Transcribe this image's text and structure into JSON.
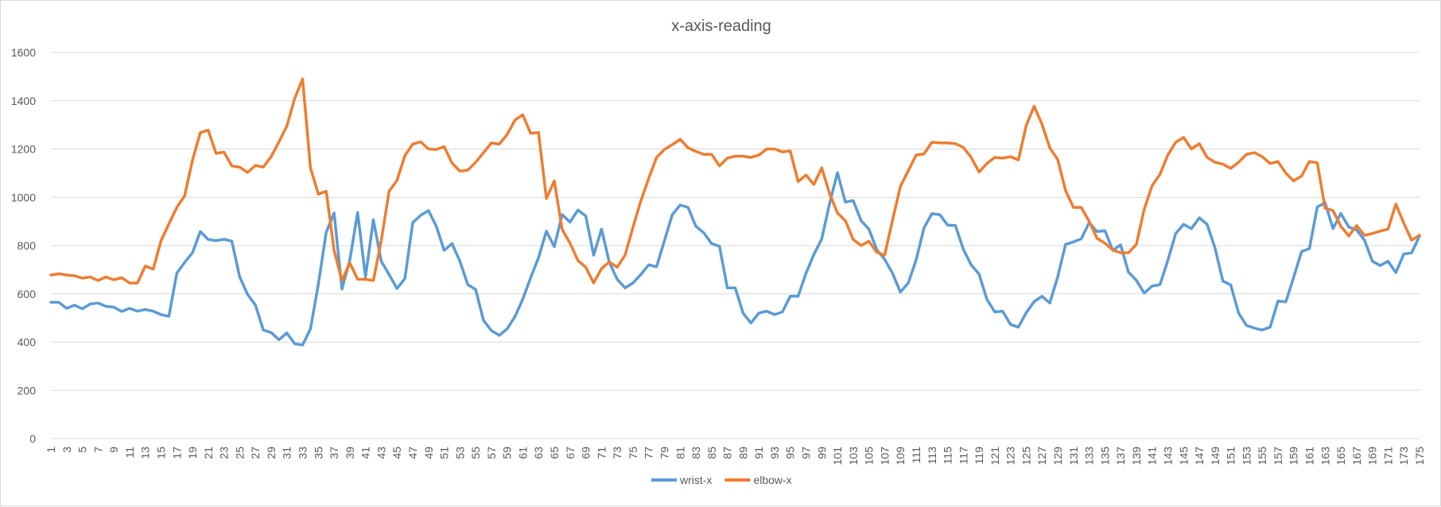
{
  "chart_data": {
    "type": "line",
    "title": "x-axis-reading",
    "xlabel": "",
    "ylabel": "",
    "ylim": [
      0,
      1600
    ],
    "yticks": [
      0,
      200,
      400,
      600,
      800,
      1000,
      1200,
      1400,
      1600
    ],
    "grid": true,
    "legend_position": "bottom",
    "x_start": 1,
    "x_end": 175,
    "x_tick_labels": [
      "1",
      "3",
      "5",
      "7",
      "9",
      "11",
      "13",
      "15",
      "17",
      "19",
      "21",
      "23",
      "25",
      "27",
      "29",
      "31",
      "33",
      "35",
      "37",
      "39",
      "41",
      "43",
      "45",
      "47",
      "49",
      "51",
      "53",
      "55",
      "57",
      "59",
      "61",
      "63",
      "65",
      "67",
      "69",
      "71",
      "73",
      "75",
      "77",
      "79",
      "81",
      "83",
      "85",
      "87",
      "89",
      "91",
      "93",
      "95",
      "97",
      "99",
      "101",
      "103",
      "105",
      "107",
      "109",
      "111",
      "113",
      "115",
      "117",
      "119",
      "121",
      "123",
      "125",
      "127",
      "129",
      "131",
      "133",
      "135",
      "137",
      "139",
      "141",
      "143",
      "145",
      "147",
      "149",
      "151",
      "153",
      "155",
      "157",
      "159",
      "161",
      "163",
      "165",
      "167",
      "169",
      "171",
      "173",
      "175"
    ],
    "series": [
      {
        "name": "wrist-x",
        "color": "#5b9bd5",
        "values": [
          565,
          565,
          540,
          553,
          538,
          558,
          562,
          548,
          545,
          527,
          540,
          528,
          535,
          528,
          514,
          507,
          685,
          730,
          770,
          858,
          825,
          820,
          826,
          818,
          670,
          598,
          553,
          450,
          440,
          410,
          438,
          393,
          388,
          455,
          640,
          855,
          935,
          620,
          740,
          937,
          670,
          907,
          735,
          680,
          622,
          663,
          895,
          925,
          945,
          880,
          780,
          808,
          735,
          638,
          618,
          490,
          448,
          428,
          455,
          506,
          578,
          667,
          750,
          860,
          795,
          928,
          897,
          947,
          922,
          760,
          868,
          730,
          660,
          625,
          645,
          680,
          720,
          712,
          820,
          928,
          968,
          958,
          880,
          853,
          808,
          797,
          625,
          625,
          520,
          479,
          520,
          528,
          514,
          525,
          590,
          590,
          685,
          763,
          827,
          975,
          1102,
          980,
          986,
          903,
          868,
          783,
          743,
          685,
          607,
          645,
          740,
          873,
          932,
          928,
          885,
          883,
          785,
          720,
          682,
          577,
          525,
          528,
          473,
          462,
          522,
          568,
          590,
          562,
          670,
          805,
          815,
          828,
          895,
          858,
          862,
          780,
          803,
          690,
          656,
          603,
          632,
          638,
          738,
          850,
          888,
          870,
          915,
          888,
          790,
          653,
          637,
          520,
          469,
          458,
          450,
          462,
          570,
          567,
          668,
          775,
          787,
          960,
          977,
          870,
          933,
          877,
          865,
          822,
          735,
          717,
          735,
          688,
          765,
          770,
          840
        ]
      },
      {
        "name": "elbow-x",
        "color": "#ed7d31",
        "values": [
          678,
          683,
          678,
          675,
          665,
          670,
          655,
          670,
          658,
          667,
          645,
          645,
          715,
          702,
          820,
          890,
          958,
          1005,
          1153,
          1268,
          1278,
          1182,
          1187,
          1130,
          1125,
          1103,
          1132,
          1125,
          1168,
          1230,
          1295,
          1410,
          1490,
          1122,
          1013,
          1025,
          780,
          655,
          728,
          660,
          660,
          655,
          820,
          1025,
          1070,
          1172,
          1220,
          1230,
          1200,
          1198,
          1210,
          1142,
          1108,
          1112,
          1145,
          1185,
          1225,
          1220,
          1260,
          1320,
          1342,
          1265,
          1268,
          995,
          1068,
          867,
          810,
          738,
          710,
          645,
          705,
          732,
          710,
          760,
          875,
          985,
          1078,
          1165,
          1198,
          1218,
          1240,
          1205,
          1190,
          1178,
          1178,
          1130,
          1162,
          1170,
          1170,
          1165,
          1175,
          1200,
          1200,
          1188,
          1192,
          1065,
          1092,
          1053,
          1122,
          1015,
          935,
          903,
          825,
          800,
          818,
          772,
          760,
          905,
          1045,
          1110,
          1175,
          1180,
          1228,
          1225,
          1225,
          1222,
          1207,
          1165,
          1105,
          1140,
          1165,
          1162,
          1168,
          1155,
          1298,
          1377,
          1303,
          1205,
          1157,
          1028,
          958,
          958,
          900,
          830,
          810,
          782,
          770,
          770,
          805,
          950,
          1048,
          1095,
          1175,
          1228,
          1248,
          1200,
          1222,
          1165,
          1145,
          1137,
          1120,
          1145,
          1178,
          1185,
          1168,
          1140,
          1148,
          1100,
          1068,
          1088,
          1148,
          1143,
          955,
          945,
          880,
          840,
          883,
          842,
          850,
          860,
          868,
          972,
          893,
          822,
          843
        ]
      }
    ]
  }
}
